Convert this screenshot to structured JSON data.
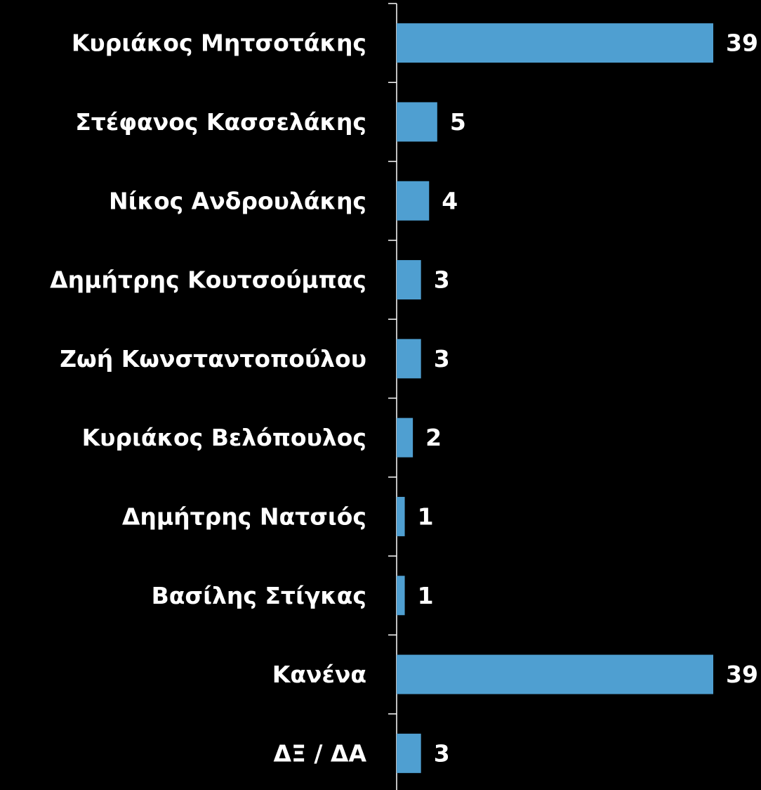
{
  "chart_data": {
    "type": "bar",
    "orientation": "horizontal",
    "categories": [
      "Κυριάκος Μητσοτάκης",
      "Στέφανος Κασσελάκης",
      "Νίκος Ανδρουλάκης",
      "Δημήτρης Κουτσούμπας",
      "Ζωή Κωνσταντοπούλου",
      "Κυριάκος Βελόπουλος",
      "Δημήτρης Νατσιός",
      "Βασίλης Στίγκας",
      "Κανένα",
      "ΔΞ / ΔΑ"
    ],
    "values": [
      39,
      5,
      4,
      3,
      3,
      2,
      1,
      1,
      39,
      3
    ],
    "color": "#4f9fd1"
  }
}
